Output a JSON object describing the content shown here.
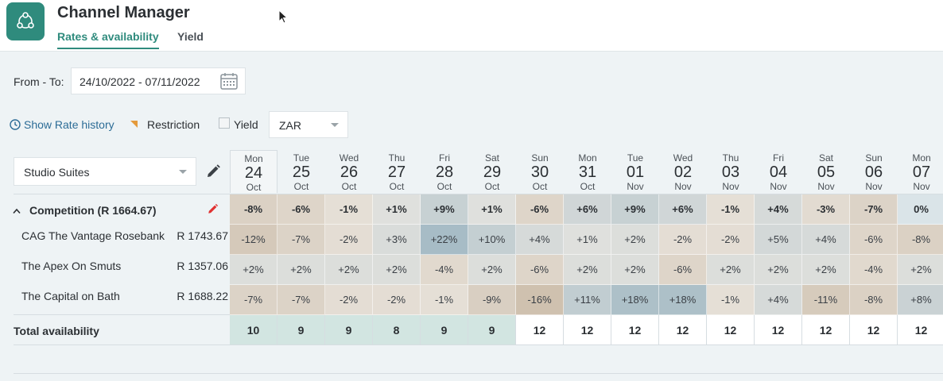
{
  "app": {
    "title": "Channel Manager",
    "icon": "nodes-icon"
  },
  "tabs": [
    {
      "label": "Rates & availability",
      "active": true
    },
    {
      "label": "Yield",
      "active": false
    }
  ],
  "filters": {
    "from_to_label": "From - To:",
    "date_range": "24/10/2022 - 07/11/2022",
    "show_rate_history": "Show Rate history",
    "restriction_label": "Restriction",
    "yield_label": "Yield",
    "yield_checked": false,
    "currency": "ZAR"
  },
  "room_type": "Studio Suites",
  "days": [
    {
      "dow": "Mon",
      "dom": "24",
      "mon": "Oct"
    },
    {
      "dow": "Tue",
      "dom": "25",
      "mon": "Oct"
    },
    {
      "dow": "Wed",
      "dom": "26",
      "mon": "Oct"
    },
    {
      "dow": "Thu",
      "dom": "27",
      "mon": "Oct"
    },
    {
      "dow": "Fri",
      "dom": "28",
      "mon": "Oct"
    },
    {
      "dow": "Sat",
      "dom": "29",
      "mon": "Oct"
    },
    {
      "dow": "Sun",
      "dom": "30",
      "mon": "Oct"
    },
    {
      "dow": "Mon",
      "dom": "31",
      "mon": "Oct"
    },
    {
      "dow": "Tue",
      "dom": "01",
      "mon": "Nov"
    },
    {
      "dow": "Wed",
      "dom": "02",
      "mon": "Nov"
    },
    {
      "dow": "Thu",
      "dom": "03",
      "mon": "Nov"
    },
    {
      "dow": "Fri",
      "dom": "04",
      "mon": "Nov"
    },
    {
      "dow": "Sat",
      "dom": "05",
      "mon": "Nov"
    },
    {
      "dow": "Sun",
      "dom": "06",
      "mon": "Nov"
    },
    {
      "dow": "Mon",
      "dom": "07",
      "mon": "Nov"
    }
  ],
  "competition": {
    "label": "Competition (R 1664.67)",
    "values": [
      "-8%",
      "-6%",
      "-1%",
      "+1%",
      "+9%",
      "+1%",
      "-6%",
      "+6%",
      "+9%",
      "+6%",
      "-1%",
      "+4%",
      "-3%",
      "-7%",
      "0%"
    ]
  },
  "competitors": [
    {
      "name": "CAG The Vantage Rosebank",
      "price": "R 1743.67",
      "values": [
        "-12%",
        "-7%",
        "-2%",
        "+3%",
        "+22%",
        "+10%",
        "+4%",
        "+1%",
        "+2%",
        "-2%",
        "-2%",
        "+5%",
        "+4%",
        "-6%",
        "-8%"
      ]
    },
    {
      "name": "The Apex On Smuts",
      "price": "R 1357.06",
      "values": [
        "+2%",
        "+2%",
        "+2%",
        "+2%",
        "-4%",
        "+2%",
        "-6%",
        "+2%",
        "+2%",
        "-6%",
        "+2%",
        "+2%",
        "+2%",
        "-4%",
        "+2%"
      ]
    },
    {
      "name": "The Capital on Bath",
      "price": "R 1688.22",
      "values": [
        "-7%",
        "-7%",
        "-2%",
        "-2%",
        "-1%",
        "-9%",
        "-16%",
        "+11%",
        "+18%",
        "+18%",
        "-1%",
        "+4%",
        "-11%",
        "-8%",
        "+8%"
      ]
    }
  ],
  "availability": {
    "label": "Total availability",
    "values": [
      "10",
      "9",
      "9",
      "8",
      "9",
      "9",
      "12",
      "12",
      "12",
      "12",
      "12",
      "12",
      "12",
      "12",
      "12"
    ]
  },
  "colors": {
    "accent": "#2f8b7d",
    "link": "#2c6c96",
    "negative_base": "#c9b9a5",
    "positive_base": "#a7bcc6",
    "avail_low": "#d2e5e1",
    "avail_full": "#ffffff"
  }
}
